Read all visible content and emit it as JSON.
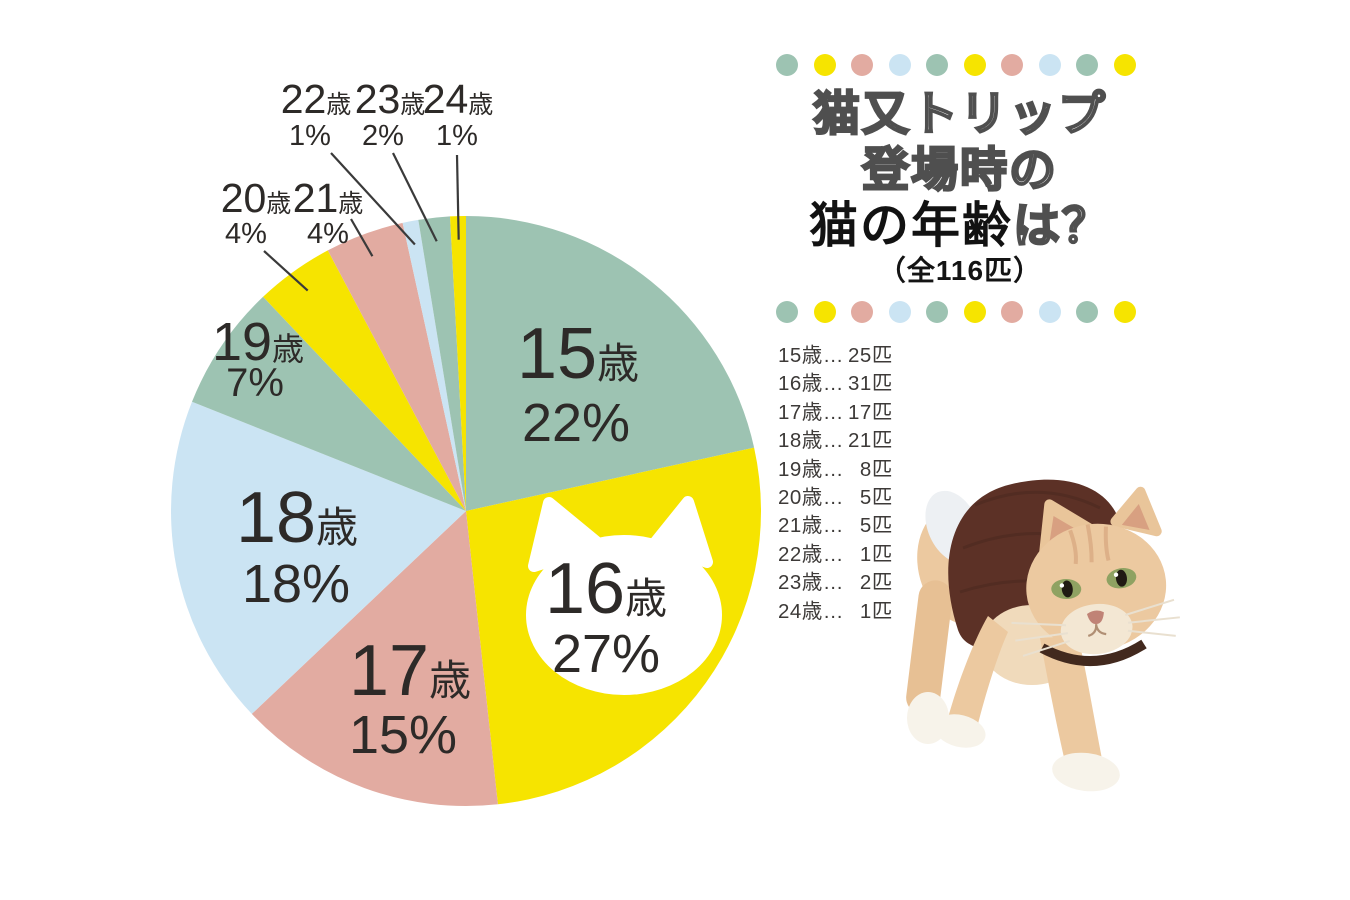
{
  "page": {
    "background": "#ffffff"
  },
  "palette": {
    "teal": "#9dc3b2",
    "yellow": "#f6e400",
    "pink": "#e2aba1",
    "blue": "#cbe4f3",
    "label_text": "#2d2a28",
    "legend_text": "#3d3a38",
    "leader_line": "#3a3a3a",
    "title_outline": "#4f4f4f",
    "title_solid": "#121212"
  },
  "title": {
    "line1": "猫又トリップ",
    "line2": "登場時の",
    "line3_strong": "猫の年齢",
    "line3_suffix": "は？",
    "line4": "（全116匹）"
  },
  "decor_dots": {
    "pattern": [
      "teal",
      "yellow",
      "pink",
      "blue",
      "teal",
      "yellow",
      "pink",
      "blue",
      "teal",
      "yellow"
    ]
  },
  "chart_data": {
    "type": "pie",
    "title": "猫又トリップ登場時の猫の年齢は？",
    "total_label": "全116匹",
    "total": 116,
    "start_angle": "top",
    "direction": "clockwise",
    "series": [
      {
        "label": "15",
        "suffix": "歳",
        "percent": 22,
        "percent_label": "22%",
        "count": 25,
        "color_key": "teal",
        "label_placement": "inside"
      },
      {
        "label": "16",
        "suffix": "歳",
        "percent": 27,
        "percent_label": "27%",
        "count": 31,
        "color_key": "yellow",
        "label_placement": "inside-cat-callout"
      },
      {
        "label": "17",
        "suffix": "歳",
        "percent": 15,
        "percent_label": "15%",
        "count": 17,
        "color_key": "pink",
        "label_placement": "inside"
      },
      {
        "label": "18",
        "suffix": "歳",
        "percent": 18,
        "percent_label": "18%",
        "count": 21,
        "color_key": "blue",
        "label_placement": "inside"
      },
      {
        "label": "19",
        "suffix": "歳",
        "percent": 7,
        "percent_label": "7%",
        "count": 8,
        "color_key": "teal",
        "label_placement": "inside"
      },
      {
        "label": "20",
        "suffix": "歳",
        "percent": 4,
        "percent_label": "4%",
        "count": 5,
        "color_key": "yellow",
        "label_placement": "outside"
      },
      {
        "label": "21",
        "suffix": "歳",
        "percent": 4,
        "percent_label": "4%",
        "count": 5,
        "color_key": "pink",
        "label_placement": "outside"
      },
      {
        "label": "22",
        "suffix": "歳",
        "percent": 1,
        "percent_label": "1%",
        "count": 1,
        "color_key": "blue",
        "label_placement": "outside"
      },
      {
        "label": "23",
        "suffix": "歳",
        "percent": 2,
        "percent_label": "2%",
        "count": 2,
        "color_key": "teal",
        "label_placement": "outside"
      },
      {
        "label": "24",
        "suffix": "歳",
        "percent": 1,
        "percent_label": "1%",
        "count": 1,
        "color_key": "yellow",
        "label_placement": "outside"
      }
    ]
  },
  "legend": {
    "separator": "…",
    "unit": "匹",
    "items": [
      {
        "age": "15歳",
        "count": "25"
      },
      {
        "age": "16歳",
        "count": "31"
      },
      {
        "age": "17歳",
        "count": "17"
      },
      {
        "age": "18歳",
        "count": "21"
      },
      {
        "age": "19歳",
        "count": "8"
      },
      {
        "age": "20歳",
        "count": "5"
      },
      {
        "age": "21歳",
        "count": "5"
      },
      {
        "age": "22歳",
        "count": "1"
      },
      {
        "age": "23歳",
        "count": "2"
      },
      {
        "age": "24歳",
        "count": "1"
      }
    ]
  },
  "cat_photo": {
    "description": "茶色いセーターを着たクリーム色の猫が歩いている写真"
  }
}
